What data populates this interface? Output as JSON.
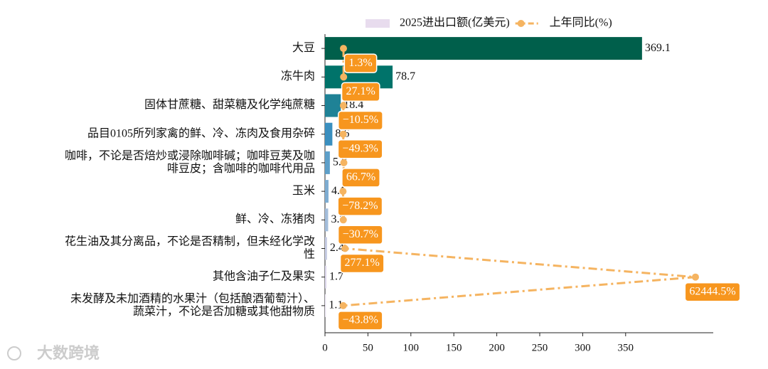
{
  "chart_data": {
    "type": "bar",
    "orientation": "horizontal",
    "categories": [
      "大豆",
      "冻牛肉",
      "固体甘蔗糖、甜菜糖及化学纯蔗糖",
      "品目0105所列家禽的鲜、冷、冻肉及食用杂碎",
      "咖啡，不论是否焙炒或浸除咖啡碱；咖啡豆荚及咖\n啡豆皮；含咖啡的咖啡代用品",
      "玉米",
      "鲜、冷、冻猪肉",
      "花生油及其分离品，不论是否精制，但未经化学改\n性",
      "其他含油子仁及果实",
      "未发酵及未加酒精的水果汁（包括酿酒葡萄汁）、\n蔬菜汁，不论是否加糖或其他甜物质"
    ],
    "series": [
      {
        "name": "2025进出口额(亿美元)",
        "color": "#e8dcee",
        "colors": [
          "#005f4b",
          "#00736a",
          "#1f8296",
          "#3a8fbf",
          "#5d9fc9",
          "#7eadd2",
          "#a3bddb",
          "#c6cce4",
          "#dcd7eb",
          "#ece6f3"
        ],
        "values": [
          369.1,
          78.7,
          18.4,
          8.6,
          5.7,
          4.1,
          3.7,
          2.4,
          1.7,
          1.1
        ]
      },
      {
        "name": "上年同比(%)",
        "type": "line",
        "axis": "x2",
        "color": "#f5b461",
        "label_color": "#f7961e",
        "values": [
          1.3,
          27.1,
          -10.5,
          -49.3,
          66.7,
          -78.2,
          -30.7,
          277.1,
          62444.5,
          -43.8
        ],
        "value_labels": [
          "1.3%",
          "27.1%",
          "−10.5%",
          "−49.3%",
          "66.7%",
          "−78.2%",
          "−30.7%",
          "277.1%",
          "62444.5%",
          "−43.8%"
        ]
      }
    ],
    "xlim": [
      0,
      452
    ],
    "xticks": [
      0,
      50,
      100,
      150,
      200,
      250,
      300,
      350
    ],
    "x2lim": [
      -3280,
      65600
    ],
    "legend": "upper center",
    "watermark": "大数跨境"
  }
}
